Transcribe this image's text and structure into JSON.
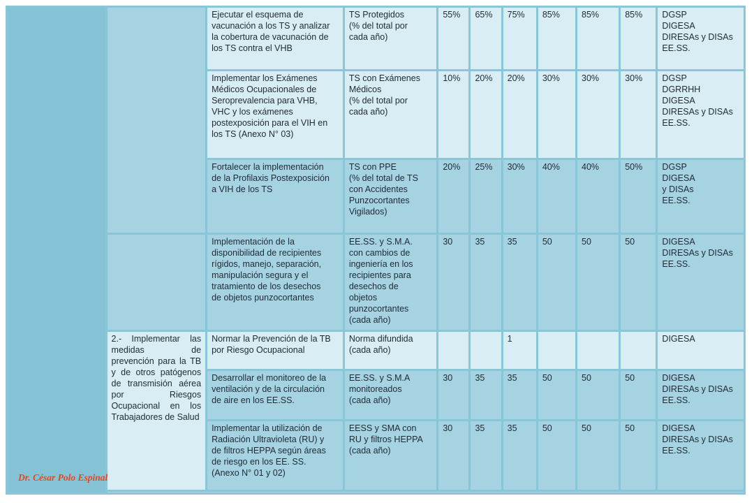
{
  "rows": [
    {
      "activity": [
        "Ejecutar el esquema de",
        "vacunación a los TS y analizar",
        "la cobertura de vacunación de",
        "los TS contra el VHB"
      ],
      "indicator": [
        "TS Protegidos",
        "(% del total por",
        "cada año)"
      ],
      "values": [
        "55%",
        "65%",
        "75%",
        "85%",
        "85%",
        "85%"
      ],
      "responsible": [
        "DGSP",
        "DIGESA",
        "DIRESAs y DISAs",
        "EE.SS."
      ]
    },
    {
      "activity": [
        "Implementar los Exámenes",
        "Médicos Ocupacionales de",
        "Seroprevalencia para VHB,",
        "VHC y los exámenes",
        "postexposición para el VIH en",
        "los TS (Anexo N° 03)"
      ],
      "indicator": [
        "TS con Exámenes",
        "Médicos",
        "(% del total por",
        "cada año)"
      ],
      "values": [
        "10%",
        "20%",
        "20%",
        "30%",
        "30%",
        "30%"
      ],
      "responsible": [
        "DGSP",
        "DGRRHH",
        "DIGESA",
        "DIRESAs y DISAs",
        "EE.SS."
      ]
    },
    {
      "activity": [
        "Fortalecer la implementación",
        "de la Profilaxis Postexposición",
        "a VIH de los TS"
      ],
      "indicator": [
        " TS con PPE",
        "(% del total de TS",
        "con Accidentes",
        "Punzocortantes",
        "Vigilados)"
      ],
      "values": [
        "20%",
        "25%",
        "30%",
        "40%",
        "40%",
        "50%"
      ],
      "responsible": [
        "DGSP",
        "DIGESA",
        "y DISAs",
        "EE.SS."
      ]
    },
    {
      "activity": [
        "Implementación de la",
        "disponibilidad de recipientes",
        "rígidos, manejo, separación,",
        "manipulación segura y el",
        "tratamiento de los desechos",
        "de objetos punzocortantes"
      ],
      "indicator": [
        "EE.SS. y S.M.A.",
        "con cambios de",
        "ingeniería en los",
        "recipientes para",
        "desechos de",
        "objetos",
        "punzocortantes",
        "(cada año)"
      ],
      "values": [
        "30",
        "35",
        "35",
        "50",
        "50",
        "50"
      ],
      "responsible": [
        "DIGESA",
        "DIRESAs y DISAs",
        "EE.SS."
      ]
    },
    {
      "activity": [
        "Normar la Prevención de la TB",
        "por Riesgo Ocupacional"
      ],
      "indicator": [
        "Norma difundida",
        "(cada año)"
      ],
      "values": [
        "",
        "",
        "1",
        "",
        "",
        ""
      ],
      "responsible": [
        "DIGESA"
      ]
    },
    {
      "activity": [
        "Desarrollar el monitoreo  de la",
        "ventilación y de la circulación",
        "de aire en los EE.SS."
      ],
      "indicator": [
        "EE.SS. y S.M.A",
        "monitoreados",
        "(cada año)"
      ],
      "values": [
        "30",
        "35",
        "35",
        "50",
        "50",
        "50"
      ],
      "responsible": [
        "DIGESA",
        "DIRESAs y DISAs",
        "EE.SS."
      ]
    },
    {
      "activity": [
        "Implementar la utilización de",
        "Radiación Ultravioleta (RU) y",
        "de filtros HEPPA según áreas",
        "de riesgo en los EE. SS.",
        "(Anexo N° 01 y 02)"
      ],
      "indicator": [
        "EESS y SMA con",
        "RU y filtros HEPPA",
        "(cada año)"
      ],
      "values": [
        "30",
        "35",
        "35",
        "50",
        "50",
        "50"
      ],
      "responsible": [
        "DIGESA",
        "DIRESAs y DISAs",
        "EE.SS."
      ]
    }
  ],
  "objective_2": "2.- Implementar las medidas de prevención para la TB y de otros patógenos de transmisión aérea por Riesgos Ocupacional en los Trabajadores de Salud",
  "author": "Dr. César Polo Espinal"
}
